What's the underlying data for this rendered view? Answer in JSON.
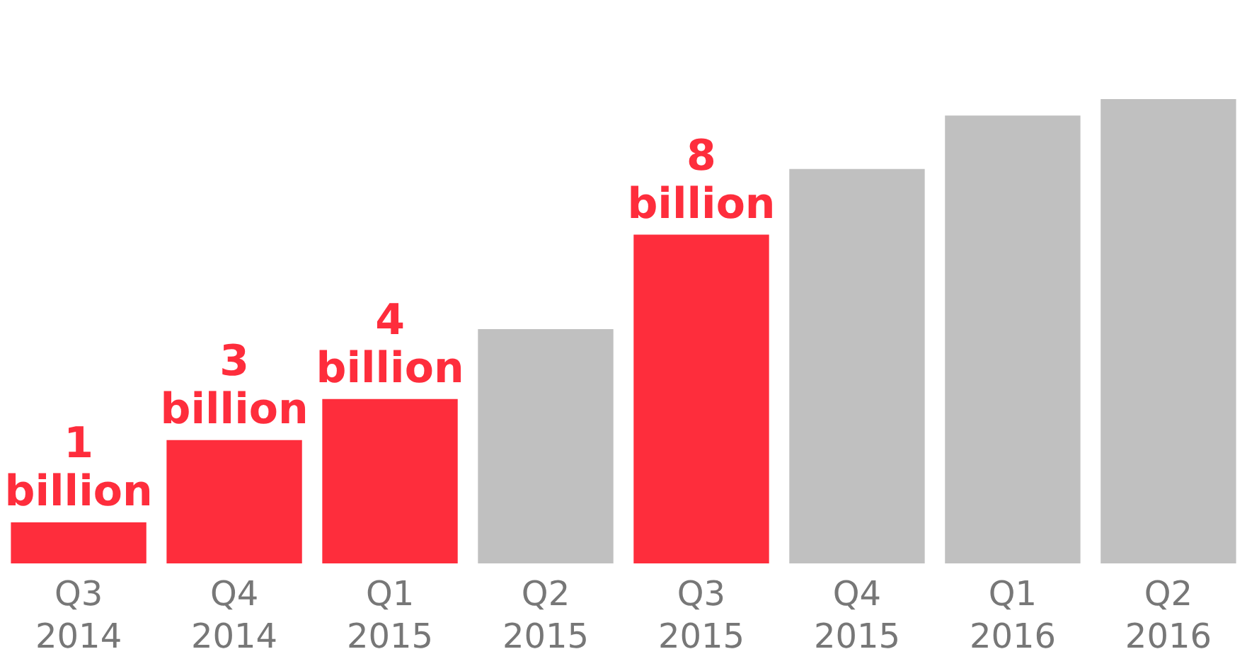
{
  "chart_data": {
    "type": "bar",
    "categories": [
      "Q3 2014",
      "Q4 2014",
      "Q1 2015",
      "Q2 2015",
      "Q3 2015",
      "Q4 2015",
      "Q1 2016",
      "Q2 2016"
    ],
    "series": [
      {
        "color": "#fe2d3c",
        "values": [
          1,
          3,
          4,
          null,
          8,
          null,
          null,
          null
        ],
        "value_labels": [
          "1 billion",
          "3 billion",
          "4 billion",
          null,
          "8 billion",
          null,
          null,
          null
        ]
      },
      {
        "color": "#c0c0c0",
        "values": [
          null,
          null,
          null,
          5.7,
          null,
          9.6,
          10.9,
          11.3
        ]
      }
    ],
    "tick_labels": "x",
    "grid": false
  }
}
